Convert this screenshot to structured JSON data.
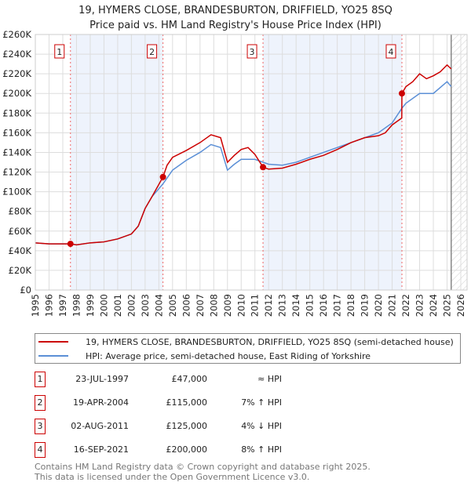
{
  "chart_data": {
    "type": "line",
    "title": "19, HYMERS CLOSE, BRANDESBURTON, DRIFFIELD, YO25 8SQ",
    "subtitle": "Price paid vs. HM Land Registry's House Price Index (HPI)",
    "xlim": [
      1995,
      2026
    ],
    "ylim": [
      0,
      260000
    ],
    "xticks": [
      "1995",
      "1996",
      "1997",
      "1998",
      "1999",
      "2000",
      "2001",
      "2002",
      "2003",
      "2004",
      "2005",
      "2006",
      "2007",
      "2008",
      "2009",
      "2010",
      "2011",
      "2012",
      "2013",
      "2014",
      "2015",
      "2016",
      "2017",
      "2018",
      "2019",
      "2020",
      "2021",
      "2022",
      "2023",
      "2024",
      "2025",
      "2026"
    ],
    "yticks": [
      "£0",
      "£20K",
      "£40K",
      "£60K",
      "£80K",
      "£100K",
      "£120K",
      "£140K",
      "£160K",
      "£180K",
      "£200K",
      "£220K",
      "£240K",
      "£260K"
    ],
    "series": [
      {
        "name": "19, HYMERS CLOSE, BRANDESBURTON, DRIFFIELD, YO25 8SQ (semi-detached house)",
        "color": "#cc0000",
        "x": [
          1995,
          1996,
          1997.56,
          1998,
          1999,
          2000,
          2001,
          2002,
          2002.5,
          2003,
          2003.5,
          2004.3,
          2004.6,
          2005,
          2006,
          2007,
          2007.8,
          2008.5,
          2009,
          2009.5,
          2010,
          2010.5,
          2011,
          2011.59,
          2012,
          2013,
          2014,
          2015,
          2016,
          2017,
          2018,
          2019,
          2020,
          2020.5,
          2021,
          2021.7,
          2021.71,
          2022,
          2022.5,
          2023,
          2023.5,
          2024,
          2024.5,
          2025,
          2025.3
        ],
        "y": [
          48000,
          47000,
          47000,
          46000,
          48000,
          49000,
          52000,
          57000,
          65000,
          83000,
          95000,
          115000,
          127000,
          135000,
          142000,
          150000,
          158000,
          155000,
          130000,
          137000,
          143000,
          145000,
          138000,
          125000,
          123000,
          124000,
          128000,
          133000,
          137000,
          143000,
          150000,
          155000,
          157000,
          160000,
          168000,
          175000,
          200000,
          207000,
          212000,
          220000,
          215000,
          218000,
          222000,
          229000,
          225000
        ]
      },
      {
        "name": "HPI: Average price, semi-detached house, East Riding of Yorkshire",
        "color": "#5b8fd6",
        "x": [
          1995,
          1996,
          1997.56,
          1998,
          1999,
          2000,
          2001,
          2002,
          2002.5,
          2003,
          2003.5,
          2004.3,
          2005,
          2006,
          2007,
          2007.8,
          2008.5,
          2009,
          2009.5,
          2010,
          2011,
          2011.59,
          2012,
          2013,
          2014,
          2015,
          2016,
          2017,
          2018,
          2019,
          2020,
          2021,
          2021.71,
          2022,
          2023,
          2024,
          2025,
          2025.3
        ],
        "y": [
          48000,
          47000,
          47000,
          46000,
          48000,
          49000,
          52000,
          57000,
          65000,
          83000,
          95000,
          108000,
          122000,
          132000,
          140000,
          148000,
          145000,
          122000,
          128000,
          133000,
          133000,
          130000,
          128000,
          127000,
          130000,
          135000,
          140000,
          145000,
          150000,
          155000,
          160000,
          170000,
          185000,
          190000,
          200000,
          200000,
          212000,
          207000
        ]
      }
    ],
    "sales": [
      {
        "n": "1",
        "x": 1997.56,
        "y": 47000,
        "date": "23-JUL-1997",
        "price": "£47,000",
        "hpi": "≈ HPI"
      },
      {
        "n": "2",
        "x": 2004.3,
        "y": 115000,
        "date": "19-APR-2004",
        "price": "£115,000",
        "hpi": "7% ↑ HPI"
      },
      {
        "n": "3",
        "x": 2011.59,
        "y": 125000,
        "date": "02-AUG-2011",
        "price": "£125,000",
        "hpi": "4% ↓ HPI"
      },
      {
        "n": "4",
        "x": 2021.71,
        "y": 200000,
        "date": "16-SEP-2021",
        "price": "£200,000",
        "hpi": "8% ↑ HPI"
      }
    ],
    "shaded": [
      [
        1997.56,
        2004.3
      ],
      [
        2011.59,
        2021.71
      ]
    ],
    "forecast_from": 2025.3,
    "grid": true
  },
  "footer": [
    "Contains HM Land Registry data © Crown copyright and database right 2025.",
    "This data is licensed under the Open Government Licence v3.0."
  ]
}
